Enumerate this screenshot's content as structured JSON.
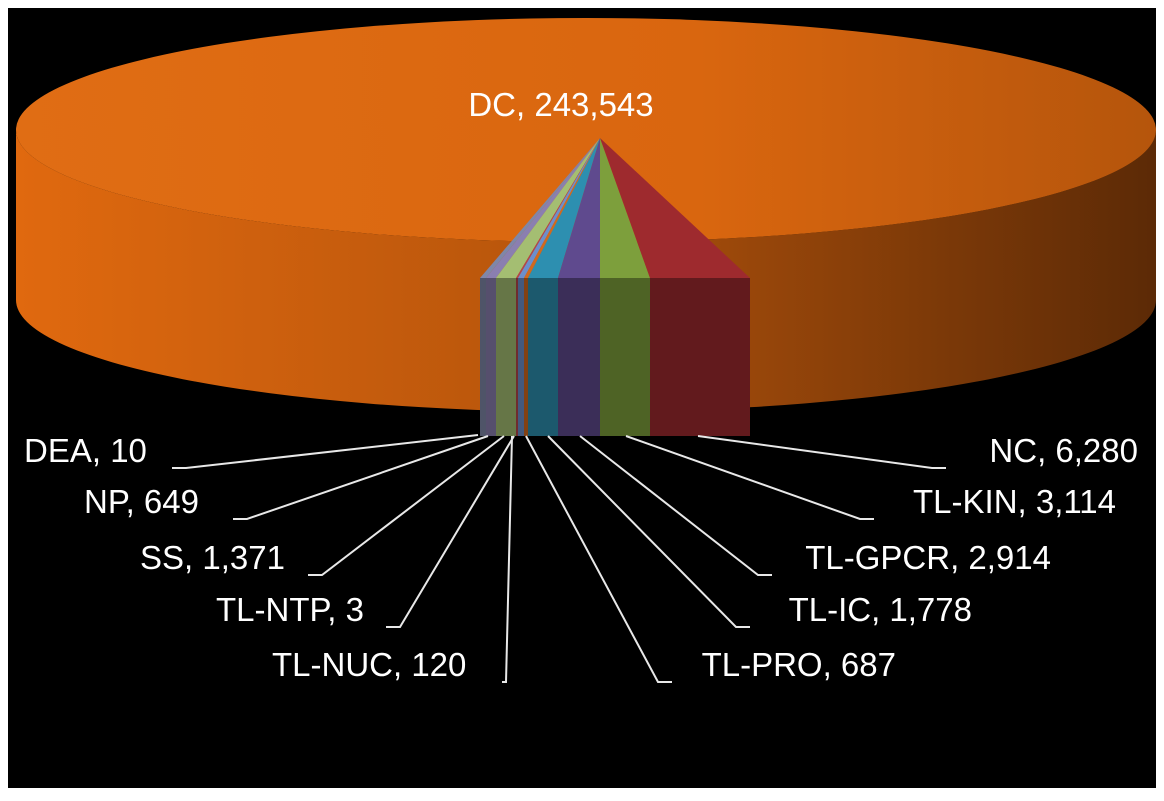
{
  "chart_data": {
    "type": "pie",
    "style": "3d-exploded",
    "slices": [
      {
        "label": "DC",
        "value": 243543,
        "display": "DC,  243,543",
        "color": "#d9660f"
      },
      {
        "label": "NC",
        "value": 6280,
        "display": "NC,  6,280",
        "color": "#9b2c2c"
      },
      {
        "label": "TL-KIN",
        "value": 3114,
        "display": "TL-KIN,  3,114",
        "color": "#7a9a3a"
      },
      {
        "label": "TL-GPCR",
        "value": 2914,
        "display": "TL-GPCR,  2,914",
        "color": "#5e4a86"
      },
      {
        "label": "TL-IC",
        "value": 1778,
        "display": "TL-IC,  1,778",
        "color": "#2f8aa6"
      },
      {
        "label": "TL-PRO",
        "value": 687,
        "display": "TL-PRO,  687",
        "color": "#c9651d"
      },
      {
        "label": "TL-NUC",
        "value": 120,
        "display": "TL-NUC,  120",
        "color": "#6d8cbf"
      },
      {
        "label": "TL-NTP",
        "value": 3,
        "display": "TL-NTP,  3",
        "color": "#b5474a"
      },
      {
        "label": "SS",
        "value": 1371,
        "display": "SS,  1,371",
        "color": "#9bb46a"
      },
      {
        "label": "NP",
        "value": 649,
        "display": "NP,  649",
        "color": "#8273a3"
      },
      {
        "label": "DEA",
        "value": 10,
        "display": "DEA,  10",
        "color": "#4aa3c0"
      }
    ]
  }
}
